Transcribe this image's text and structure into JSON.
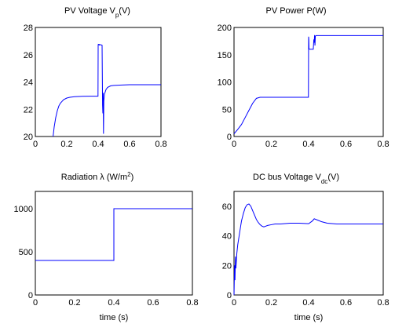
{
  "colors": {
    "trace": "#0000ff",
    "axes": "#000000",
    "background": "#ffffff"
  },
  "chart_data": [
    {
      "type": "line",
      "title": {
        "main": "PV Voltage V",
        "sub": "p",
        "tail": "(V)"
      },
      "xlabel": "",
      "ylabel": "",
      "xlim": [
        0,
        0.8
      ],
      "ylim": [
        20,
        28
      ],
      "xticks": [
        0,
        0.2,
        0.4,
        0.6,
        0.8
      ],
      "xtick_labels": [
        "0",
        "0.2",
        "0.4",
        "0.6",
        "0.8"
      ],
      "yticks": [
        20,
        22,
        24,
        26,
        28
      ],
      "ytick_labels": [
        "20",
        "22",
        "24",
        "26",
        "28"
      ],
      "grid": false,
      "series": [
        {
          "x": [
            0.113,
            0.12,
            0.13,
            0.14,
            0.15,
            0.16,
            0.18,
            0.2,
            0.22,
            0.25,
            0.3,
            0.35,
            0.399,
            0.4,
            0.401,
            0.41,
            0.405,
            0.42,
            0.425,
            0.428,
            0.43,
            0.432,
            0.434,
            0.436,
            0.44,
            0.45,
            0.46,
            0.48,
            0.5,
            0.55,
            0.6,
            0.7,
            0.8
          ],
          "y": [
            20.0,
            20.7,
            21.4,
            21.9,
            22.25,
            22.45,
            22.7,
            22.82,
            22.88,
            22.92,
            22.95,
            22.96,
            22.96,
            26.7,
            26.75,
            26.7,
            26.75,
            26.72,
            26.7,
            22.3,
            21.7,
            23.2,
            20.2,
            22.6,
            23.1,
            23.45,
            23.6,
            23.72,
            23.75,
            23.78,
            23.8,
            23.8,
            23.8
          ]
        }
      ]
    },
    {
      "type": "line",
      "title": {
        "main": "PV Power P(W)",
        "sub": "",
        "tail": ""
      },
      "xlabel": "",
      "ylabel": "",
      "xlim": [
        0,
        0.8
      ],
      "ylim": [
        0,
        200
      ],
      "xticks": [
        0,
        0.2,
        0.4,
        0.6,
        0.8
      ],
      "xtick_labels": [
        "0",
        "0.2",
        "0.4",
        "0.6",
        "0.8"
      ],
      "yticks": [
        0,
        50,
        100,
        150,
        200
      ],
      "ytick_labels": [
        "0",
        "50",
        "100",
        "150",
        "200"
      ],
      "grid": false,
      "series": [
        {
          "x": [
            0,
            0.02,
            0.04,
            0.06,
            0.08,
            0.1,
            0.12,
            0.14,
            0.16,
            0.2,
            0.3,
            0.399,
            0.4,
            0.401,
            0.402,
            0.405,
            0.41,
            0.415,
            0.42,
            0.425,
            0.428,
            0.43,
            0.432,
            0.434,
            0.436,
            0.44,
            0.5,
            0.6,
            0.7,
            0.8
          ],
          "y": [
            5,
            13,
            22,
            35,
            48,
            61,
            70,
            72,
            72,
            72,
            72,
            72,
            183,
            178,
            161,
            160,
            160,
            160,
            160,
            160,
            178,
            172,
            186,
            167,
            184,
            185,
            185,
            185,
            185,
            185
          ]
        }
      ]
    },
    {
      "type": "line",
      "title": {
        "main": "Radiation λ  (W/m",
        "sup": "2",
        "tail": ")"
      },
      "xlabel": "time (s)",
      "ylabel": "",
      "xlim": [
        0,
        0.8
      ],
      "ylim": [
        0,
        1200
      ],
      "xticks": [
        0,
        0.2,
        0.4,
        0.6,
        0.8
      ],
      "xtick_labels": [
        "0",
        "0.2",
        "0.4",
        "0.6",
        "0.8"
      ],
      "yticks": [
        0,
        500,
        1000
      ],
      "ytick_labels": [
        "0",
        "500",
        "1000"
      ],
      "grid": false,
      "series": [
        {
          "x": [
            0,
            0.4,
            0.4,
            0.8
          ],
          "y": [
            400,
            400,
            1000,
            1000
          ]
        }
      ]
    },
    {
      "type": "line",
      "title": {
        "main": "DC bus Voltage V",
        "sub": "dc",
        "tail": "(V)"
      },
      "xlabel": "time (s)",
      "ylabel": "",
      "xlim": [
        0,
        0.8
      ],
      "ylim": [
        0,
        70
      ],
      "xticks": [
        0,
        0.2,
        0.4,
        0.6,
        0.8
      ],
      "xtick_labels": [
        "0",
        "0.2",
        "0.4",
        "0.6",
        "0.8"
      ],
      "yticks": [
        0,
        20,
        40,
        60
      ],
      "ytick_labels": [
        "0",
        "20",
        "40",
        "60"
      ],
      "grid": false,
      "series": [
        {
          "x": [
            0,
            0.003,
            0.005,
            0.008,
            0.01,
            0.015,
            0.02,
            0.03,
            0.04,
            0.05,
            0.06,
            0.07,
            0.08,
            0.09,
            0.1,
            0.11,
            0.12,
            0.13,
            0.14,
            0.15,
            0.16,
            0.17,
            0.18,
            0.2,
            0.22,
            0.25,
            0.3,
            0.35,
            0.4,
            0.42,
            0.43,
            0.45,
            0.47,
            0.5,
            0.55,
            0.6,
            0.7,
            0.8
          ],
          "y": [
            0,
            20,
            10,
            26,
            18,
            28,
            34,
            42,
            50,
            55,
            59,
            61,
            61.5,
            60,
            57,
            54,
            51,
            49,
            47.5,
            46.5,
            46,
            46.5,
            47,
            47.5,
            48,
            48,
            48.5,
            48.5,
            48.2,
            50,
            51.5,
            50.5,
            49.5,
            48.5,
            48,
            48,
            48,
            48
          ]
        }
      ]
    }
  ]
}
